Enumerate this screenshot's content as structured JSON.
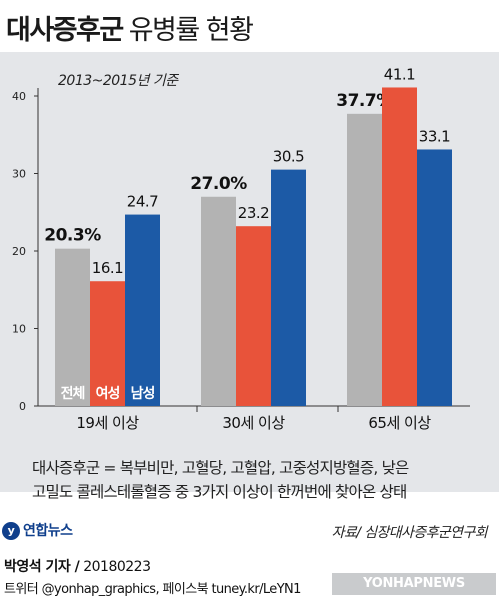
{
  "title_main": "대사증후군",
  "title_sub": "유병률 현황",
  "notes": [
    "대사증후군 = 복부비만, 고혈당, 고혈압, 고중성지방혈증, 낮은",
    "고밀도 콜레스테롤혈증 중 3가지 이상이 한꺼번에 찾아온 상태"
  ],
  "logo_text": "연합뉴스",
  "source": "자료/ 심장대사증후군연구회",
  "reporter": "박영석 기자 /",
  "date": "20180223",
  "sns": "트위터 @yonhap_graphics, 페이스북 tuney.kr/LeYN1",
  "watermark": "YONHAPNEWS",
  "colors": {
    "total": "#b3b3b3",
    "female": "#e8533a",
    "male": "#1c5aa6"
  },
  "chart_data": {
    "type": "bar",
    "title": "대사증후군 유병률 현황",
    "subtitle": "2013~2015년 기준",
    "categories": [
      "19세 이상",
      "30세 이상",
      "65세 이상"
    ],
    "series": [
      {
        "name": "전체",
        "values": [
          20.3,
          27.0,
          37.7
        ],
        "labels": [
          "20.3%",
          "27.0%",
          "37.7%"
        ]
      },
      {
        "name": "여성",
        "values": [
          16.1,
          23.2,
          41.1
        ],
        "labels": [
          "16.1",
          "23.2",
          "41.1"
        ]
      },
      {
        "name": "남성",
        "values": [
          24.7,
          30.5,
          33.1
        ],
        "labels": [
          "24.7",
          "30.5",
          "33.1"
        ]
      }
    ],
    "yticks": [
      0,
      10,
      20,
      30,
      40
    ],
    "ylim": [
      0,
      45
    ],
    "legend": "inside-bars-bottom-left",
    "grid": false
  }
}
